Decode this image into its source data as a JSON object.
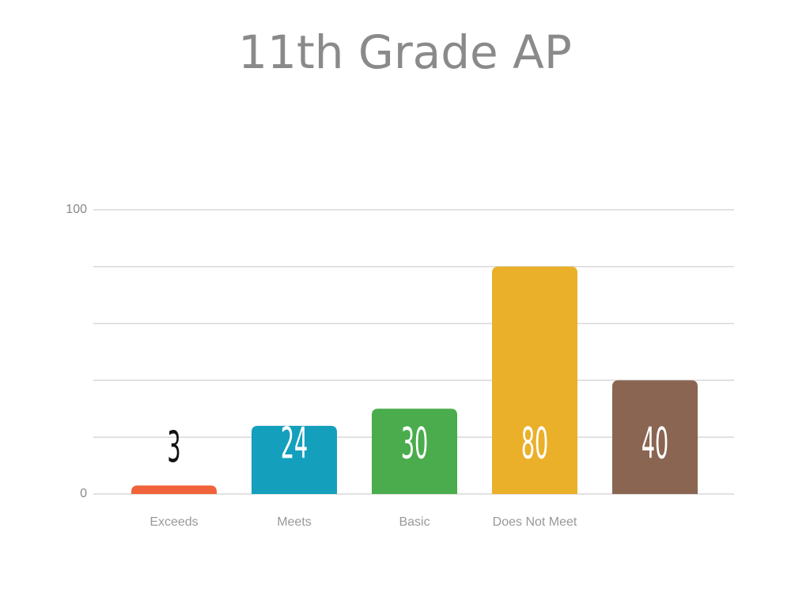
{
  "chart_data": {
    "type": "bar",
    "title": "11th Grade AP",
    "categories": [
      "Exceeds",
      "Meets",
      "Basic",
      "Does Not Meet",
      null
    ],
    "values": [
      3,
      24,
      30,
      80,
      40
    ],
    "colors": [
      "#f0623a",
      "#14a0bc",
      "#4aac4c",
      "#ebb02a",
      "#8a6552"
    ],
    "ylim": [
      0,
      100
    ],
    "yticks": [
      0,
      100
    ],
    "gridlines": [
      20,
      40,
      60,
      80
    ],
    "grid": true
  }
}
